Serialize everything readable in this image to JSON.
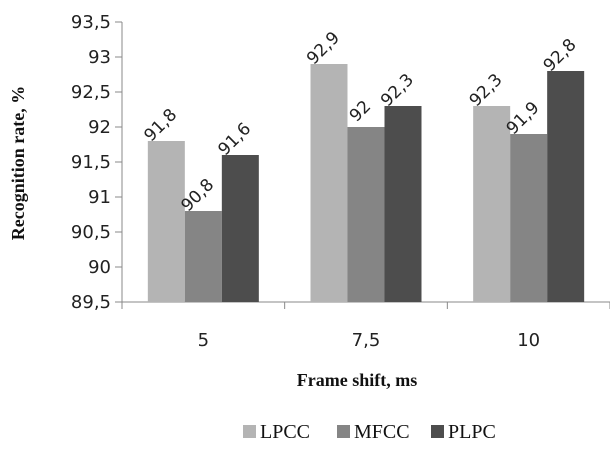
{
  "chart_data": {
    "type": "bar",
    "title": "",
    "xlabel": "Frame shift, ms",
    "ylabel": "Recognition rate, %",
    "categories": [
      "5",
      "7,5",
      "10"
    ],
    "series": [
      {
        "name": "LPCC",
        "values": [
          91.8,
          92.9,
          92.3
        ],
        "labels": [
          "91,8",
          "92,9",
          "92,3"
        ],
        "color": "#b4b4b4"
      },
      {
        "name": "MFCC",
        "values": [
          90.8,
          92.0,
          91.9
        ],
        "labels": [
          "90,8",
          "92",
          "91,9"
        ],
        "color": "#858585"
      },
      {
        "name": "PLPC",
        "values": [
          91.6,
          92.3,
          92.8
        ],
        "labels": [
          "91,6",
          "92,3",
          "92,8"
        ],
        "color": "#4d4d4d"
      }
    ],
    "ylim": [
      89.5,
      93.5
    ],
    "yticks": [
      89.5,
      90,
      90.5,
      91,
      91.5,
      92,
      92.5,
      93,
      93.5
    ],
    "ytick_labels": [
      "89,5",
      "90",
      "90,5",
      "91",
      "91,5",
      "92",
      "92,5",
      "93",
      "93,5"
    ],
    "grid": false,
    "legend_position": "bottom"
  }
}
